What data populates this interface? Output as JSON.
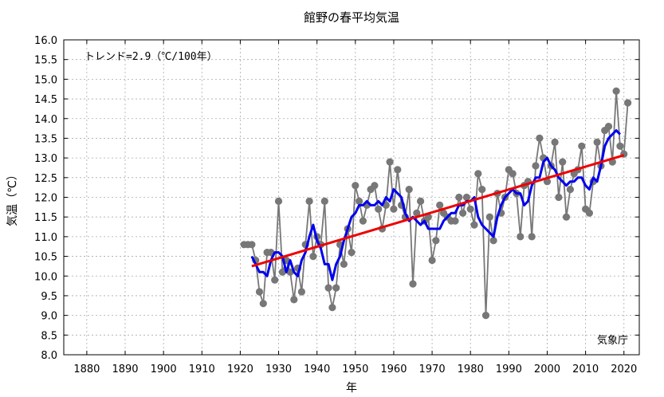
{
  "chart_data": {
    "type": "line",
    "title": "館野の春平均気温",
    "xlabel": "年",
    "ylabel": "気温（℃）",
    "xlim": [
      1874,
      2024
    ],
    "ylim": [
      8.0,
      16.0
    ],
    "x_ticks": [
      1880,
      1890,
      1900,
      1910,
      1920,
      1930,
      1940,
      1950,
      1960,
      1970,
      1980,
      1990,
      2000,
      2010,
      2020
    ],
    "y_ticks": [
      8.0,
      8.5,
      9.0,
      9.5,
      10.0,
      10.5,
      11.0,
      11.5,
      12.0,
      12.5,
      13.0,
      13.5,
      14.0,
      14.5,
      15.0,
      15.5,
      16.0
    ],
    "grid": true,
    "trend_label": "トレンド=2.9（℃/100年）",
    "credit": "気象庁",
    "colors": {
      "annual": "#777777",
      "moving_average": "#0000ee",
      "trend": "#ee0000",
      "grid": "#aaaaaa"
    },
    "series": [
      {
        "kind": "annual",
        "x": [
          1921,
          1922,
          1923,
          1924,
          1925,
          1926,
          1927,
          1928,
          1929,
          1930,
          1931,
          1932,
          1933,
          1934,
          1935,
          1936,
          1937,
          1938,
          1939,
          1940,
          1941,
          1942,
          1943,
          1944,
          1945,
          1946,
          1947,
          1948,
          1949,
          1950,
          1951,
          1952,
          1953,
          1954,
          1955,
          1956,
          1957,
          1958,
          1959,
          1960,
          1961,
          1962,
          1963,
          1964,
          1965,
          1966,
          1967,
          1968,
          1969,
          1970,
          1971,
          1972,
          1973,
          1974,
          1975,
          1976,
          1977,
          1978,
          1979,
          1980,
          1981,
          1982,
          1983,
          1984,
          1985,
          1986,
          1987,
          1988,
          1989,
          1990,
          1991,
          1992,
          1993,
          1994,
          1995,
          1996,
          1997,
          1998,
          1999,
          2000,
          2001,
          2002,
          2003,
          2004,
          2005,
          2006,
          2007,
          2008,
          2009,
          2010,
          2011,
          2012,
          2013,
          2014,
          2015,
          2016,
          2017,
          2018,
          2019,
          2020,
          2021
        ],
        "values": [
          10.8,
          10.8,
          10.8,
          10.4,
          9.6,
          9.3,
          10.6,
          10.6,
          9.9,
          11.9,
          10.1,
          10.4,
          10.1,
          9.4,
          10.2,
          9.6,
          10.8,
          11.9,
          10.5,
          11.0,
          10.8,
          11.9,
          9.7,
          9.2,
          9.7,
          10.8,
          10.3,
          11.2,
          10.6,
          12.3,
          11.9,
          11.4,
          11.8,
          12.2,
          12.3,
          11.7,
          11.2,
          11.8,
          12.9,
          11.7,
          12.7,
          11.8,
          11.5,
          12.2,
          9.8,
          11.6,
          11.9,
          11.4,
          11.5,
          10.4,
          10.9,
          11.8,
          11.6,
          11.5,
          11.4,
          11.4,
          12.0,
          11.6,
          12.0,
          11.7,
          11.3,
          12.6,
          12.2,
          9.0,
          11.5,
          10.9,
          12.1,
          11.6,
          12.0,
          12.7,
          12.6,
          12.1,
          11.0,
          12.3,
          12.4,
          11.0,
          12.8,
          13.5,
          13.0,
          12.4,
          12.8,
          13.4,
          12.0,
          12.9,
          11.5,
          12.2,
          12.6,
          12.7,
          13.3,
          11.7,
          11.6,
          12.4,
          13.4,
          12.8,
          13.7,
          13.8,
          12.9,
          14.7,
          13.3,
          13.1,
          14.4
        ]
      },
      {
        "kind": "moving_average",
        "x": [
          1923,
          1924,
          1925,
          1926,
          1927,
          1928,
          1929,
          1930,
          1931,
          1932,
          1933,
          1934,
          1935,
          1936,
          1937,
          1938,
          1939,
          1940,
          1941,
          1942,
          1943,
          1944,
          1945,
          1946,
          1947,
          1948,
          1949,
          1950,
          1951,
          1952,
          1953,
          1954,
          1955,
          1956,
          1957,
          1958,
          1959,
          1960,
          1961,
          1962,
          1963,
          1964,
          1965,
          1966,
          1967,
          1968,
          1969,
          1970,
          1971,
          1972,
          1973,
          1974,
          1975,
          1976,
          1977,
          1978,
          1979,
          1980,
          1981,
          1982,
          1983,
          1984,
          1985,
          1986,
          1987,
          1988,
          1989,
          1990,
          1991,
          1992,
          1993,
          1994,
          1995,
          1996,
          1997,
          1998,
          1999,
          2000,
          2001,
          2002,
          2003,
          2004,
          2005,
          2006,
          2007,
          2008,
          2009,
          2010,
          2011,
          2012,
          2013,
          2014,
          2015,
          2016,
          2017,
          2018,
          2019
        ],
        "values": [
          10.5,
          10.3,
          10.1,
          10.1,
          10.0,
          10.4,
          10.6,
          10.6,
          10.5,
          10.1,
          10.4,
          10.1,
          10.0,
          10.4,
          10.6,
          11.0,
          11.3,
          10.9,
          10.7,
          10.3,
          10.3,
          9.9,
          10.3,
          10.5,
          10.9,
          11.2,
          11.5,
          11.6,
          11.8,
          11.8,
          11.9,
          11.8,
          11.8,
          11.9,
          11.8,
          12.0,
          11.9,
          12.2,
          12.1,
          12.0,
          11.6,
          11.4,
          11.5,
          11.4,
          11.3,
          11.4,
          11.2,
          11.2,
          11.2,
          11.2,
          11.4,
          11.5,
          11.6,
          11.6,
          11.8,
          11.8,
          11.9,
          11.9,
          12.0,
          11.5,
          11.3,
          11.2,
          11.1,
          11.0,
          11.5,
          11.8,
          12.0,
          12.1,
          12.2,
          12.1,
          12.1,
          11.8,
          11.9,
          12.3,
          12.5,
          12.5,
          12.9,
          13.0,
          12.8,
          12.7,
          12.5,
          12.4,
          12.3,
          12.4,
          12.4,
          12.5,
          12.5,
          12.3,
          12.2,
          12.5,
          12.4,
          12.8,
          13.3,
          13.5,
          13.6,
          13.7,
          13.6
        ]
      },
      {
        "kind": "trend",
        "x": [
          1923,
          2020
        ],
        "values": [
          10.25,
          13.07
        ]
      }
    ]
  }
}
